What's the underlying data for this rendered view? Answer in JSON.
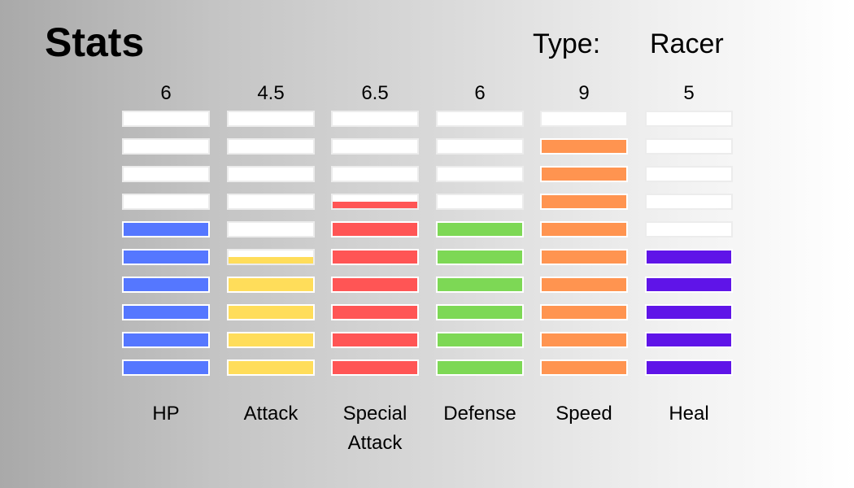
{
  "header": {
    "title": "Stats",
    "type_label": "Type:",
    "type_value": "Racer"
  },
  "chart_data": {
    "type": "bar",
    "segments_per_bar": 10,
    "categories": [
      "HP",
      "Attack",
      "Special Attack",
      "Defense",
      "Speed",
      "Heal"
    ],
    "value_labels": [
      "6",
      "4.5",
      "6.5",
      "6",
      "9",
      "5"
    ],
    "values": [
      6,
      4.5,
      6.5,
      6,
      9,
      5
    ],
    "colors": [
      "#5577ff",
      "#ffdd5a",
      "#ff5555",
      "#7dd855",
      "#ff9450",
      "#5f14e8"
    ],
    "empty_color": "#ffffff",
    "ylim": [
      0,
      10
    ]
  }
}
